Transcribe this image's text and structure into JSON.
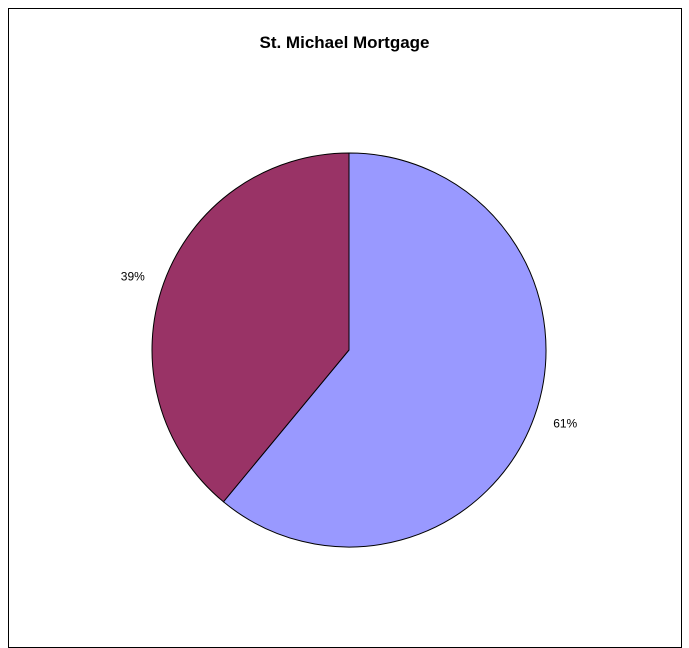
{
  "chart_data": {
    "type": "pie",
    "title": "St. Michael Mortgage",
    "categories": [
      "",
      ""
    ],
    "values": [
      61,
      39
    ],
    "labels": [
      "61%",
      "39%"
    ],
    "colors": [
      "#9999FF",
      "#993366"
    ],
    "outline_color": "#000000",
    "legend": "none"
  }
}
